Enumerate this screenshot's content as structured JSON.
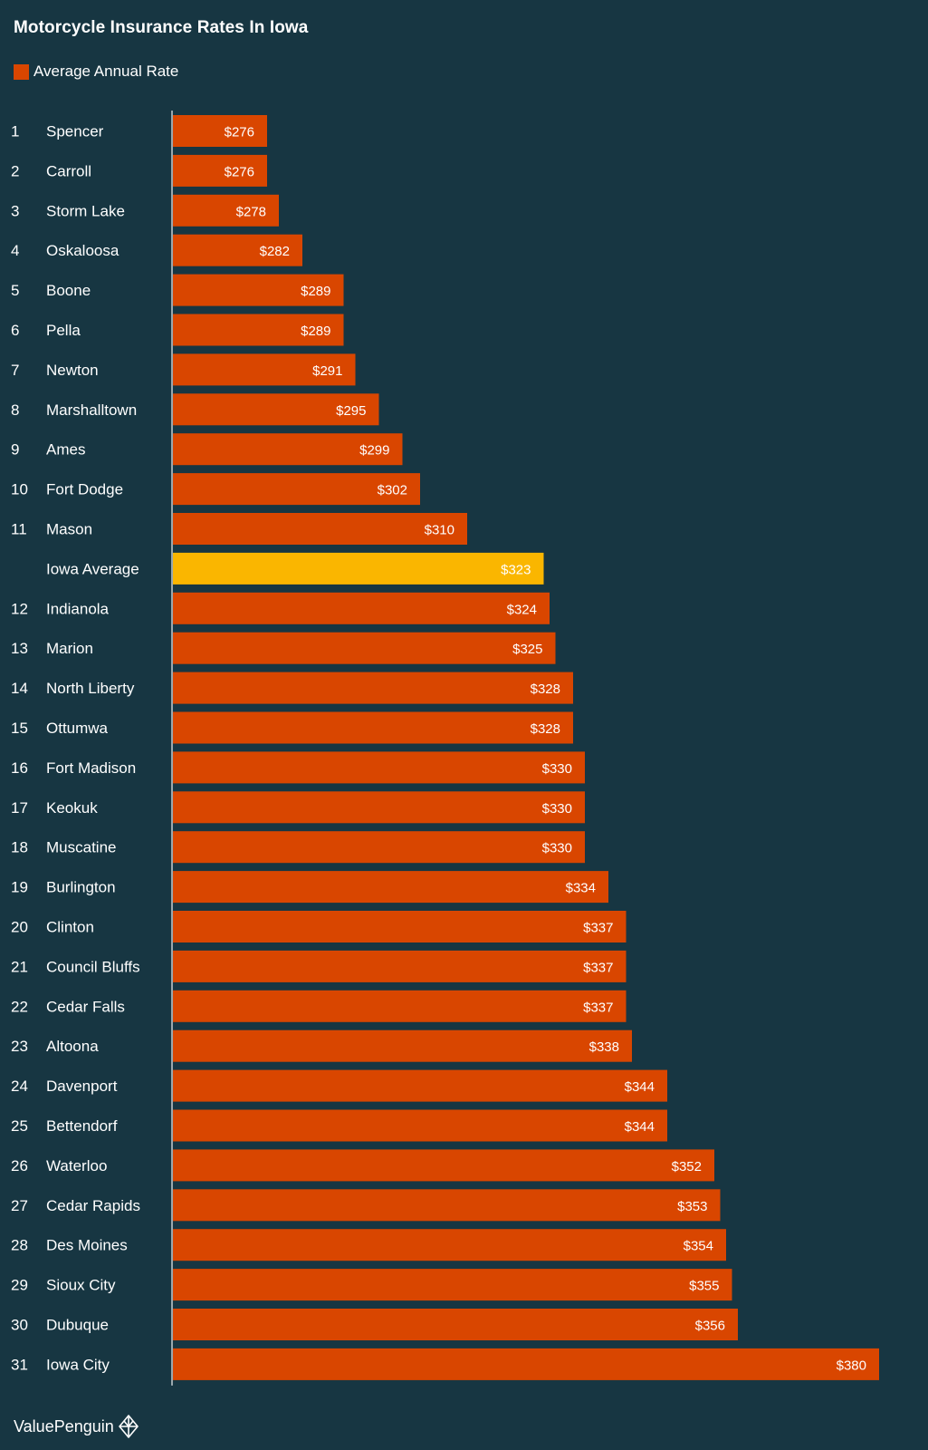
{
  "colors": {
    "background": "#173642",
    "bar": "#d94600",
    "highlight": "#fab600",
    "text": "#ffffff",
    "axis": "#9aa8ae"
  },
  "brand": {
    "name": "ValuePenguin",
    "icon": "penguin-logo-icon"
  },
  "chart_data": {
    "type": "bar",
    "orientation": "horizontal",
    "title": "Motorcycle Insurance Rates In Iowa",
    "legend": [
      {
        "label": "Average Annual Rate",
        "color": "#d94600"
      }
    ],
    "xlim": [
      0,
      380
    ],
    "value_prefix": "$",
    "rows": [
      {
        "rank": "1",
        "label": "Spencer",
        "value": 276
      },
      {
        "rank": "2",
        "label": "Carroll",
        "value": 276
      },
      {
        "rank": "3",
        "label": "Storm Lake",
        "value": 278
      },
      {
        "rank": "4",
        "label": "Oskaloosa",
        "value": 282
      },
      {
        "rank": "5",
        "label": "Boone",
        "value": 289
      },
      {
        "rank": "6",
        "label": "Pella",
        "value": 289
      },
      {
        "rank": "7",
        "label": "Newton",
        "value": 291
      },
      {
        "rank": "8",
        "label": "Marshalltown",
        "value": 295
      },
      {
        "rank": "9",
        "label": "Ames",
        "value": 299
      },
      {
        "rank": "10",
        "label": "Fort Dodge",
        "value": 302
      },
      {
        "rank": "11",
        "label": "Mason",
        "value": 310
      },
      {
        "rank": "",
        "label": "Iowa Average",
        "value": 323,
        "highlight": true
      },
      {
        "rank": "12",
        "label": "Indianola",
        "value": 324
      },
      {
        "rank": "13",
        "label": "Marion",
        "value": 325
      },
      {
        "rank": "14",
        "label": "North Liberty",
        "value": 328
      },
      {
        "rank": "15",
        "label": "Ottumwa",
        "value": 328
      },
      {
        "rank": "16",
        "label": "Fort Madison",
        "value": 330
      },
      {
        "rank": "17",
        "label": "Keokuk",
        "value": 330
      },
      {
        "rank": "18",
        "label": "Muscatine",
        "value": 330
      },
      {
        "rank": "19",
        "label": "Burlington",
        "value": 334
      },
      {
        "rank": "20",
        "label": "Clinton",
        "value": 337
      },
      {
        "rank": "21",
        "label": "Council Bluffs",
        "value": 337
      },
      {
        "rank": "22",
        "label": "Cedar Falls",
        "value": 337
      },
      {
        "rank": "23",
        "label": "Altoona",
        "value": 338
      },
      {
        "rank": "24",
        "label": "Davenport",
        "value": 344
      },
      {
        "rank": "25",
        "label": "Bettendorf",
        "value": 344
      },
      {
        "rank": "26",
        "label": "Waterloo",
        "value": 352
      },
      {
        "rank": "27",
        "label": "Cedar Rapids",
        "value": 353
      },
      {
        "rank": "28",
        "label": "Des Moines",
        "value": 354
      },
      {
        "rank": "29",
        "label": "Sioux City",
        "value": 355
      },
      {
        "rank": "30",
        "label": "Dubuque",
        "value": 356
      },
      {
        "rank": "31",
        "label": "Iowa City",
        "value": 380
      }
    ]
  }
}
